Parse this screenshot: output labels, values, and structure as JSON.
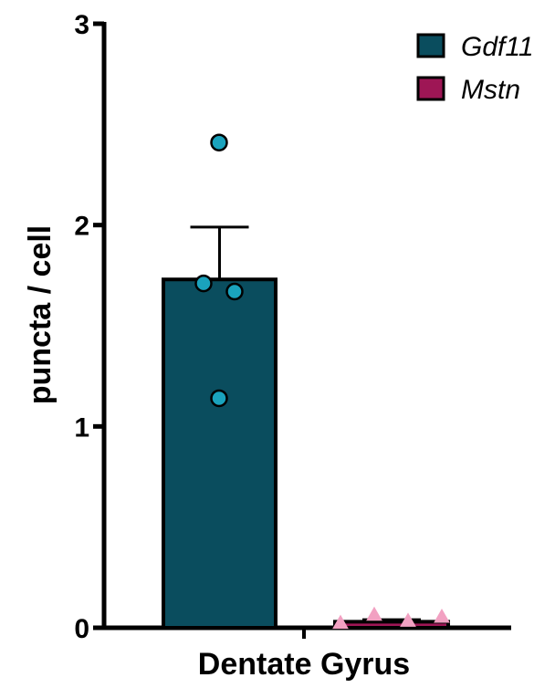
{
  "chart_data": {
    "type": "bar",
    "categories": [
      "Dentate Gyrus"
    ],
    "xlabel": "Dentate Gyrus",
    "ylabel": "puncta / cell",
    "ylim": [
      0,
      3
    ],
    "yticks": [
      0,
      1,
      2,
      3
    ],
    "grid": false,
    "legend_position": "top-right",
    "series": [
      {
        "name": "Gdf11",
        "color": "#0a4d5e",
        "point_color": "#1aa3bd",
        "marker": "circle",
        "mean": 1.73,
        "sem": 0.26,
        "points": [
          2.41,
          1.71,
          1.67,
          1.14
        ]
      },
      {
        "name": "Mstn",
        "color": "#9e1655",
        "point_color": "#f2a1c2",
        "marker": "triangle",
        "mean": 0.03,
        "sem": 0.01,
        "points": [
          0.02,
          0.06,
          0.03,
          0.05
        ]
      }
    ]
  }
}
